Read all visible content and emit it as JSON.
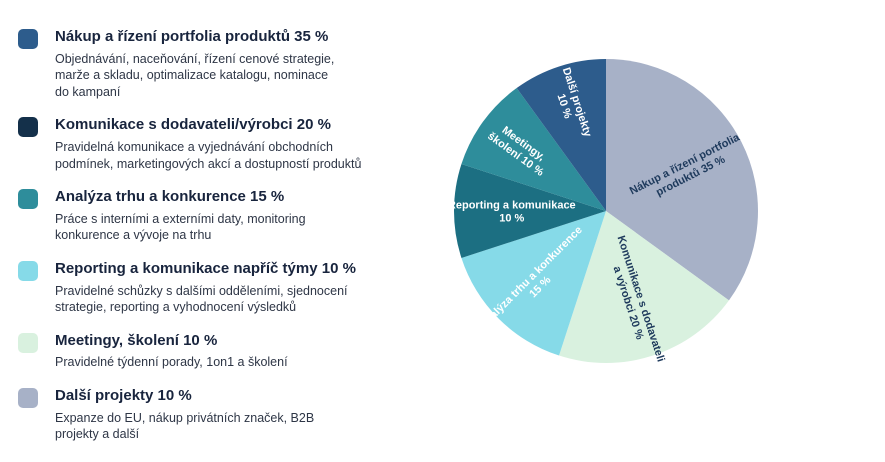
{
  "page": {
    "background": "#ffffff"
  },
  "legend": {
    "items": [
      {
        "title": "Nákup a řízení portfolia produktů 35 %",
        "description": "Objednávání, naceňování, řízení cenové strategie,\nmarže a skladu, optimalizace katalogu, nominace\ndo kampaní",
        "color": "#2D5C8C"
      },
      {
        "title": "Komunikace s dodavateli/výrobci 20 %",
        "description": "Pravidelná komunikace a vyjednávání obchodních\npodmínek, marketingových akcí a dostupností produktů",
        "color": "#14304A"
      },
      {
        "title": "Analýza trhu a konkurence 15 %",
        "description": "Práce s interními a externími daty, monitoring\nkonkurence a vývoje na trhu",
        "color": "#2E8D9B"
      },
      {
        "title": "Reporting a komunikace napříč týmy 10 %",
        "description": "Pravidelné schůzky s dalšími odděleními, sjednocení\nstrategie, reporting a vyhodnocení výsledků",
        "color": "#86DAE8"
      },
      {
        "title": "Meetingy, školení 10 %",
        "description": "Pravidelné týdenní porady, 1on1 a školení",
        "color": "#D9F1DF"
      },
      {
        "title": "Další projekty 10 %",
        "description": "Expanze do EU, nákup privátních značek, B2B\nprojekty a další",
        "color": "#A7B1C7"
      }
    ]
  },
  "chart_data": {
    "type": "pie",
    "title": "",
    "start_angle_deg": 0,
    "direction": "clockwise",
    "legend_position": "left",
    "slices": [
      {
        "label": "Nákup a řízení portfolia produktů",
        "value": 35,
        "color": "#A7B1C7",
        "label_lines": [
          "Nákup a řízení portfolia",
          "produktů 35 %"
        ],
        "label_color": "#1E3A5C",
        "label_rotation": -27,
        "label_radius": 0.6
      },
      {
        "label": "Komunikace s dodavateli a výrobci",
        "value": 20,
        "color": "#D9F1DF",
        "label_lines": [
          "Komunikace s dodavateli",
          "a výrobci 20 %"
        ],
        "label_color": "#1E3A5C",
        "label_rotation": 72,
        "label_radius": 0.62
      },
      {
        "label": "Analýza trhu a konkurence",
        "value": 15,
        "color": "#86DAE8",
        "label_lines": [
          "Analýza trhu a konkurence",
          "15 %"
        ],
        "label_color": "#FFFFFF",
        "label_rotation": -45,
        "label_radius": 0.66
      },
      {
        "label": "Reporting a komunikace",
        "value": 10,
        "color": "#1C6F82",
        "label_lines": [
          "Reporting a komunikace",
          "10 %"
        ],
        "label_color": "#FFFFFF",
        "label_rotation": 0,
        "label_radius": 0.62
      },
      {
        "label": "Meetingy, školení",
        "value": 10,
        "color": "#2E8D9B",
        "label_lines": [
          "Meetingy,",
          "školení 10 %"
        ],
        "label_color": "#FFFFFF",
        "label_rotation": 36,
        "label_radius": 0.7
      },
      {
        "label": "Další projekty",
        "value": 10,
        "color": "#2D5C8C",
        "label_lines": [
          "Další projekty",
          "10 %"
        ],
        "label_color": "#FFFFFF",
        "label_rotation": 72,
        "label_radius": 0.74
      }
    ]
  }
}
